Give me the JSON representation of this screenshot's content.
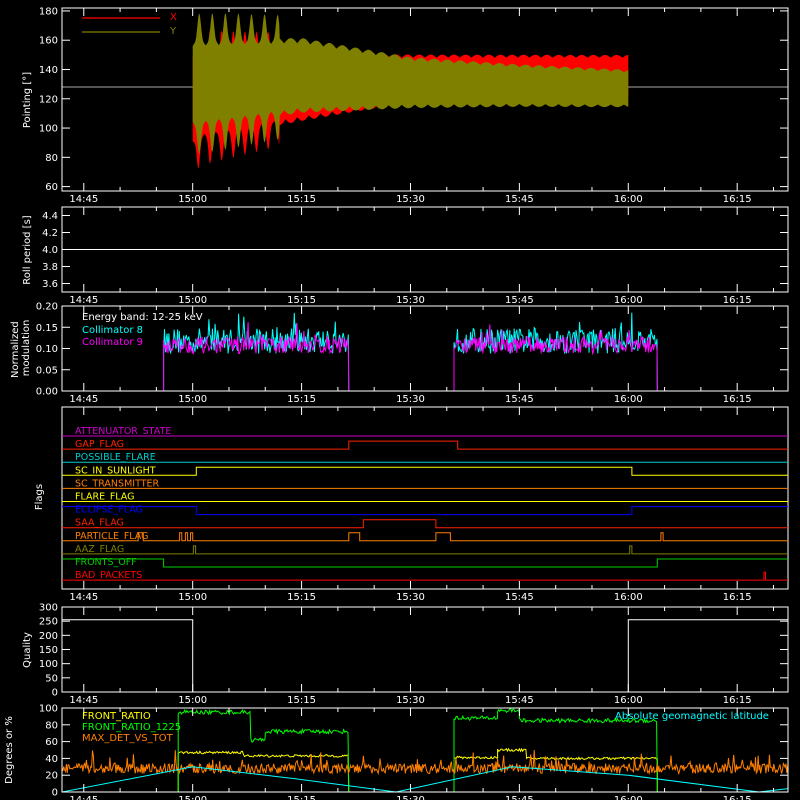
{
  "time_ticks": [
    "14:45",
    "15:00",
    "15:15",
    "15:30",
    "15:45",
    "16:00",
    "16:15"
  ],
  "time_tick_minutes": [
    -15,
    0,
    15,
    30,
    45,
    60,
    75
  ],
  "chart_data": [
    {
      "id": "pointing",
      "type": "line",
      "ylabel": "Pointing [°]",
      "xlim": [
        -18,
        82
      ],
      "ylim": [
        57,
        182
      ],
      "yticks": [
        60,
        80,
        100,
        120,
        140,
        160,
        180
      ],
      "reference_line": 128,
      "series": [
        {
          "name": "X",
          "color": "#ff0000",
          "active": [
            0,
            60
          ],
          "center": [
            {
              "t": 0,
              "v": 120
            },
            {
              "t": 15,
              "v": 128
            },
            {
              "t": 30,
              "v": 134
            },
            {
              "t": 45,
              "v": 135
            },
            {
              "t": 60,
              "v": 136
            }
          ],
          "amplitude": [
            {
              "t": 0,
              "v": 58
            },
            {
              "t": 1,
              "v": 50
            },
            {
              "t": 15,
              "v": 40
            },
            {
              "t": 30,
              "v": 28
            },
            {
              "t": 60,
              "v": 24
            }
          ],
          "ripple_period_min": 3.2
        },
        {
          "name": "Y",
          "color": "#808000",
          "active": [
            0,
            60
          ],
          "center": [
            {
              "t": 0,
              "v": 130
            },
            {
              "t": 15,
              "v": 136
            },
            {
              "t": 30,
              "v": 131
            },
            {
              "t": 45,
              "v": 129
            },
            {
              "t": 60,
              "v": 127
            }
          ],
          "amplitude": [
            {
              "t": 0,
              "v": 52
            },
            {
              "t": 5,
              "v": 50
            },
            {
              "t": 15,
              "v": 44
            },
            {
              "t": 30,
              "v": 30
            },
            {
              "t": 45,
              "v": 25
            },
            {
              "t": 60,
              "v": 22
            }
          ],
          "ripple_period_min": 3.6
        }
      ]
    },
    {
      "id": "roll",
      "type": "line",
      "ylabel": "Roll period [s]",
      "xlim": [
        -18,
        82
      ],
      "ylim": [
        3.5,
        4.5
      ],
      "yticks": [
        3.6,
        3.8,
        4.0,
        4.2,
        4.4
      ],
      "series": [
        {
          "name": "",
          "color": "#ffffff",
          "value": 4.0
        }
      ]
    },
    {
      "id": "modulation",
      "type": "line",
      "ylabel": "Normalized modulation",
      "xlim": [
        -18,
        82
      ],
      "ylim": [
        0,
        0.2
      ],
      "yticks": [
        0.0,
        0.05,
        0.1,
        0.15,
        0.2
      ],
      "annotation": "Energy band: 12-25 keV",
      "series": [
        {
          "name": "Collimator 8",
          "color": "#00ffff",
          "active": [
            [
              -4,
              21.5
            ],
            [
              36,
              64
            ]
          ],
          "mean": 0.118,
          "noise": 0.03
        },
        {
          "name": "Collimator 9",
          "color": "#ff00ff",
          "active": [
            [
              -4,
              21.5
            ],
            [
              36,
              64
            ]
          ],
          "mean": 0.108,
          "noise": 0.02
        }
      ]
    },
    {
      "id": "flags",
      "type": "line",
      "ylabel": "Flags",
      "xlim": [
        -18,
        82
      ],
      "flags": [
        {
          "name": "ATTENUATOR_STATE",
          "color": "#cc00cc",
          "high": []
        },
        {
          "name": "GAP_FLAG",
          "color": "#ff2000",
          "high": [
            [
              21.5,
              36.5
            ]
          ]
        },
        {
          "name": "POSSIBLE_FLARE",
          "color": "#00cccc",
          "high": []
        },
        {
          "name": "SC_IN_SUNLIGHT",
          "color": "#ffff00",
          "high": [
            [
              0.5,
              60.5
            ]
          ]
        },
        {
          "name": "SC_TRANSMITTER",
          "color": "#ff7f00",
          "high": []
        },
        {
          "name": "FLARE_FLAG",
          "color": "#ffff00",
          "high": []
        },
        {
          "name": "ECLIPSE_FLAG",
          "color": "#0000ff",
          "high": [
            [
              -18,
              0.5
            ],
            [
              60.5,
              82
            ]
          ]
        },
        {
          "name": "SAA_FLAG",
          "color": "#ff2000",
          "high": [
            [
              23.5,
              33.5
            ]
          ]
        },
        {
          "name": "PARTICLE_FLAG",
          "color": "#ff7f00",
          "high": [
            [
              -7.5,
              -6.8
            ],
            [
              -1.8,
              -1.5
            ],
            [
              -1.0,
              -0.7
            ],
            [
              -0.3,
              0.0
            ],
            [
              21.5,
              23
            ],
            [
              33.5,
              35.5
            ],
            [
              64.5,
              64.8
            ]
          ]
        },
        {
          "name": "AAZ_FLAG",
          "color": "#808000",
          "high": [
            [
              0.1,
              0.4
            ],
            [
              60.2,
              60.5
            ]
          ]
        },
        {
          "name": "FRONTS_OFF",
          "color": "#00cc00",
          "high": [
            [
              -18,
              -4
            ],
            [
              64,
              82
            ]
          ]
        },
        {
          "name": "BAD_PACKETS",
          "color": "#ff0000",
          "high": [
            [
              78.7,
              78.9
            ]
          ]
        }
      ]
    },
    {
      "id": "quality",
      "type": "line",
      "ylabel": "Quality",
      "xlim": [
        -18,
        82
      ],
      "ylim": [
        0,
        300
      ],
      "yticks": [
        0,
        50,
        100,
        150,
        200,
        250,
        300
      ],
      "series": [
        {
          "name": "",
          "color": "#ffffff",
          "steps": [
            {
              "t": -18,
              "v": 255
            },
            {
              "t": 0,
              "v": 0
            },
            {
              "t": 60,
              "v": 255
            },
            {
              "t": 82,
              "v": 255
            }
          ]
        }
      ]
    },
    {
      "id": "ratios",
      "type": "line",
      "ylabel": "Degrees or %",
      "xlim": [
        -18,
        82
      ],
      "ylim": [
        0,
        100
      ],
      "yticks": [
        0,
        20,
        40,
        60,
        80,
        100
      ],
      "annotation": "Absolute geomagnetic latitude",
      "series": [
        {
          "name": "FRONT_RATIO",
          "color": "#ffff00",
          "segments": [
            {
              "t0": -2,
              "t1": 7,
              "v": 47
            },
            {
              "t0": 7,
              "t1": 21.5,
              "v": 43
            },
            {
              "t0": 36,
              "t1": 42,
              "v": 41
            },
            {
              "t0": 42,
              "t1": 46,
              "v": 50
            },
            {
              "t0": 46,
              "t1": 64,
              "v": 40
            }
          ],
          "noise": 1.5
        },
        {
          "name": "FRONT_RATIO_1225",
          "color": "#00ff00",
          "segments": [
            {
              "t0": -2,
              "t1": 8,
              "v": 95
            },
            {
              "t0": 8,
              "t1": 10,
              "v": 62
            },
            {
              "t0": 10,
              "t1": 21.5,
              "v": 72
            },
            {
              "t0": 36,
              "t1": 42,
              "v": 88
            },
            {
              "t0": 42,
              "t1": 45,
              "v": 97
            },
            {
              "t0": 45,
              "t1": 64,
              "v": 85
            }
          ],
          "noise": 2.5
        },
        {
          "name": "MAX_DET_VS_TOT",
          "color": "#ff8000",
          "full_range": true,
          "mean": 28,
          "noise": 6
        },
        {
          "name": "",
          "color": "#00ffff",
          "geomag": [
            {
              "t": -18,
              "v": 0
            },
            {
              "t": 0,
              "v": 30
            },
            {
              "t": 14,
              "v": 16
            },
            {
              "t": 28,
              "v": 0
            },
            {
              "t": 44,
              "v": 30
            },
            {
              "t": 60,
              "v": 20
            },
            {
              "t": 78,
              "v": 0
            },
            {
              "t": 82,
              "v": 4
            }
          ]
        }
      ]
    }
  ]
}
